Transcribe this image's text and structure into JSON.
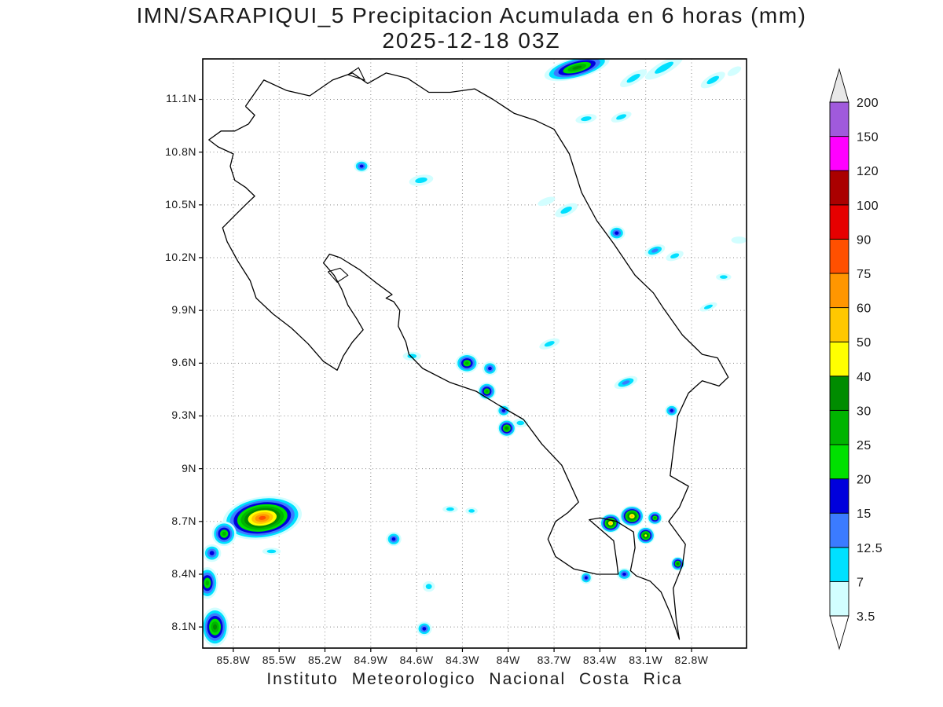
{
  "title": {
    "line1": "IMN/SARAPIQUI_5 Precipitacion Acumulada en 6 horas (mm)",
    "line2": "2025-12-18 03Z"
  },
  "footer": "Instituto Meteorologico Nacional Costa Rica",
  "chart_data": {
    "type": "heatmap",
    "subtype": "precipitation-shaded-contour-map",
    "region": "Costa Rica",
    "units": "mm",
    "grid": "dotted",
    "extent": {
      "lon_min": -86.0,
      "lon_max": -82.44,
      "lat_min": 7.98,
      "lat_max": 11.33
    },
    "x_tick_labels": [
      "85.8W",
      "85.5W",
      "85.2W",
      "84.9W",
      "84.6W",
      "84.3W",
      "84W",
      "83.7W",
      "83.4W",
      "83.1W",
      "82.8W"
    ],
    "x_tick_lons": [
      -85.8,
      -85.5,
      -85.2,
      -84.9,
      -84.6,
      -84.3,
      -84.0,
      -83.7,
      -83.4,
      -83.1,
      -82.8
    ],
    "y_tick_labels": [
      "11.1N",
      "10.8N",
      "10.5N",
      "10.2N",
      "9.9N",
      "9.6N",
      "9.3N",
      "9N",
      "8.7N",
      "8.4N",
      "8.1N"
    ],
    "y_tick_lats": [
      11.1,
      10.8,
      10.5,
      10.2,
      9.9,
      9.6,
      9.3,
      9.0,
      8.7,
      8.4,
      8.1
    ],
    "colorbar": {
      "levels": [
        3.5,
        7,
        12.5,
        15,
        20,
        25,
        30,
        40,
        50,
        60,
        75,
        90,
        100,
        120,
        150,
        200
      ],
      "labels": [
        "3.5",
        "7",
        "12.5",
        "15",
        "20",
        "25",
        "30",
        "40",
        "50",
        "60",
        "75",
        "90",
        "100",
        "120",
        "150",
        "200"
      ],
      "colors": [
        "#d2feff",
        "#00e0ff",
        "#3b7bff",
        "#0000dc",
        "#00e000",
        "#00b400",
        "#008c00",
        "#ffff00",
        "#ffc800",
        "#ff9600",
        "#ff5000",
        "#e60000",
        "#aa0000",
        "#ff00ff",
        "#a05adc"
      ],
      "under_color": "#ffffff",
      "over_color": "#e8e8e8"
    },
    "cells": [
      {
        "lon": -83.55,
        "lat": 11.28,
        "max_mm": 30,
        "rx": 0.22,
        "ry": 0.06,
        "rot": -15
      },
      {
        "lon": -83.18,
        "lat": 11.22,
        "max_mm": 7,
        "rx": 0.1,
        "ry": 0.03,
        "rot": -30
      },
      {
        "lon": -82.98,
        "lat": 11.28,
        "max_mm": 7,
        "rx": 0.14,
        "ry": 0.035,
        "rot": -30
      },
      {
        "lon": -82.66,
        "lat": 11.21,
        "max_mm": 7,
        "rx": 0.09,
        "ry": 0.03,
        "rot": -30
      },
      {
        "lon": -82.52,
        "lat": 11.26,
        "max_mm": 3.5,
        "rx": 0.05,
        "ry": 0.02,
        "rot": -30
      },
      {
        "lon": -83.49,
        "lat": 10.99,
        "max_mm": 7,
        "rx": 0.07,
        "ry": 0.025,
        "rot": -10
      },
      {
        "lon": -83.26,
        "lat": 11.0,
        "max_mm": 7,
        "rx": 0.07,
        "ry": 0.025,
        "rot": -20
      },
      {
        "lon": -84.96,
        "lat": 10.72,
        "max_mm": 15,
        "rx": 0.05,
        "ry": 0.035,
        "rot": 0
      },
      {
        "lon": -84.57,
        "lat": 10.64,
        "max_mm": 7,
        "rx": 0.08,
        "ry": 0.03,
        "rot": -10
      },
      {
        "lon": -83.75,
        "lat": 10.52,
        "max_mm": 3.5,
        "rx": 0.06,
        "ry": 0.02,
        "rot": -20
      },
      {
        "lon": -83.62,
        "lat": 10.47,
        "max_mm": 7,
        "rx": 0.08,
        "ry": 0.03,
        "rot": -25
      },
      {
        "lon": -83.29,
        "lat": 10.34,
        "max_mm": 15,
        "rx": 0.055,
        "ry": 0.04,
        "rot": 0
      },
      {
        "lon": -83.04,
        "lat": 10.24,
        "max_mm": 12.5,
        "rx": 0.07,
        "ry": 0.03,
        "rot": -20
      },
      {
        "lon": -82.91,
        "lat": 10.21,
        "max_mm": 7,
        "rx": 0.06,
        "ry": 0.025,
        "rot": -20
      },
      {
        "lon": -82.49,
        "lat": 10.3,
        "max_mm": 3.5,
        "rx": 0.05,
        "ry": 0.02,
        "rot": 0
      },
      {
        "lon": -82.59,
        "lat": 10.09,
        "max_mm": 7,
        "rx": 0.05,
        "ry": 0.02,
        "rot": 0
      },
      {
        "lon": -82.69,
        "lat": 9.92,
        "max_mm": 7,
        "rx": 0.06,
        "ry": 0.02,
        "rot": -20
      },
      {
        "lon": -84.27,
        "lat": 9.6,
        "max_mm": 25,
        "rx": 0.075,
        "ry": 0.055,
        "rot": 0
      },
      {
        "lon": -84.12,
        "lat": 9.57,
        "max_mm": 15,
        "rx": 0.05,
        "ry": 0.04,
        "rot": 0
      },
      {
        "lon": -84.14,
        "lat": 9.44,
        "max_mm": 25,
        "rx": 0.06,
        "ry": 0.05,
        "rot": 0
      },
      {
        "lon": -84.03,
        "lat": 9.33,
        "max_mm": 15,
        "rx": 0.045,
        "ry": 0.035,
        "rot": 0
      },
      {
        "lon": -84.01,
        "lat": 9.23,
        "max_mm": 30,
        "rx": 0.06,
        "ry": 0.05,
        "rot": 0
      },
      {
        "lon": -83.92,
        "lat": 9.26,
        "max_mm": 7,
        "rx": 0.05,
        "ry": 0.025,
        "rot": 0
      },
      {
        "lon": -83.73,
        "lat": 9.71,
        "max_mm": 7,
        "rx": 0.07,
        "ry": 0.025,
        "rot": -20
      },
      {
        "lon": -84.63,
        "lat": 9.64,
        "max_mm": 7,
        "rx": 0.06,
        "ry": 0.025,
        "rot": 0
      },
      {
        "lon": -83.23,
        "lat": 9.49,
        "max_mm": 12.5,
        "rx": 0.08,
        "ry": 0.03,
        "rot": -20
      },
      {
        "lon": -82.93,
        "lat": 9.33,
        "max_mm": 15,
        "rx": 0.045,
        "ry": 0.035,
        "rot": 0
      },
      {
        "lon": -85.61,
        "lat": 8.72,
        "max_mm": 75,
        "rx": 0.26,
        "ry": 0.12,
        "rot": -8
      },
      {
        "lon": -85.86,
        "lat": 8.63,
        "max_mm": 25,
        "rx": 0.08,
        "ry": 0.07,
        "rot": 0
      },
      {
        "lon": -85.94,
        "lat": 8.52,
        "max_mm": 15,
        "rx": 0.06,
        "ry": 0.05,
        "rot": 0
      },
      {
        "lon": -85.97,
        "lat": 8.35,
        "max_mm": 25,
        "rx": 0.07,
        "ry": 0.09,
        "rot": 0
      },
      {
        "lon": -85.92,
        "lat": 8.1,
        "max_mm": 30,
        "rx": 0.09,
        "ry": 0.11,
        "rot": 0
      },
      {
        "lon": -85.55,
        "lat": 8.53,
        "max_mm": 7,
        "rx": 0.06,
        "ry": 0.02,
        "rot": 0
      },
      {
        "lon": -84.75,
        "lat": 8.6,
        "max_mm": 15,
        "rx": 0.05,
        "ry": 0.04,
        "rot": 0
      },
      {
        "lon": -84.38,
        "lat": 8.77,
        "max_mm": 7,
        "rx": 0.05,
        "ry": 0.02,
        "rot": 0
      },
      {
        "lon": -84.24,
        "lat": 8.76,
        "max_mm": 7,
        "rx": 0.04,
        "ry": 0.02,
        "rot": 0
      },
      {
        "lon": -84.52,
        "lat": 8.33,
        "max_mm": 7,
        "rx": 0.04,
        "ry": 0.03,
        "rot": 0
      },
      {
        "lon": -84.55,
        "lat": 8.09,
        "max_mm": 15,
        "rx": 0.05,
        "ry": 0.04,
        "rot": 0
      },
      {
        "lon": -83.49,
        "lat": 8.38,
        "max_mm": 15,
        "rx": 0.04,
        "ry": 0.035,
        "rot": 0
      },
      {
        "lon": -83.24,
        "lat": 8.4,
        "max_mm": 15,
        "rx": 0.05,
        "ry": 0.035,
        "rot": 0
      },
      {
        "lon": -83.33,
        "lat": 8.69,
        "max_mm": 50,
        "rx": 0.07,
        "ry": 0.055,
        "rot": 0
      },
      {
        "lon": -83.19,
        "lat": 8.73,
        "max_mm": 50,
        "rx": 0.08,
        "ry": 0.06,
        "rot": 0
      },
      {
        "lon": -83.1,
        "lat": 8.62,
        "max_mm": 40,
        "rx": 0.06,
        "ry": 0.05,
        "rot": 0
      },
      {
        "lon": -83.04,
        "lat": 8.72,
        "max_mm": 25,
        "rx": 0.05,
        "ry": 0.04,
        "rot": 0
      },
      {
        "lon": -82.89,
        "lat": 8.46,
        "max_mm": 30,
        "rx": 0.045,
        "ry": 0.04,
        "rot": 0
      }
    ]
  }
}
